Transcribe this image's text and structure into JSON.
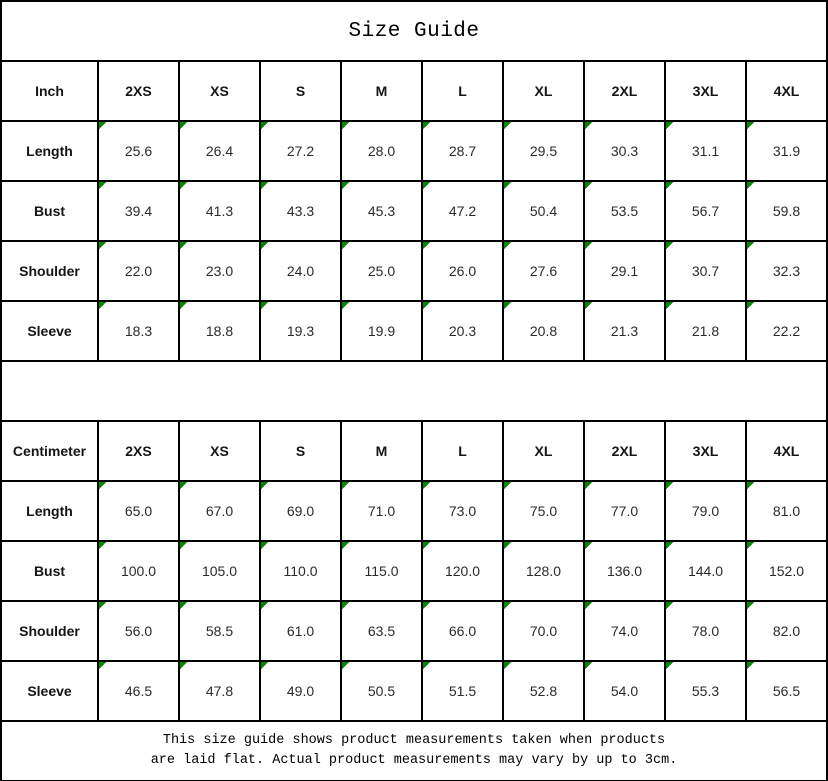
{
  "colors": {
    "background": "#ffffff",
    "border": "#000000",
    "indicator_green": "#008800"
  },
  "icons": {
    "stored_as_text_indicator": "green corner triangle"
  },
  "chart_data": {
    "type": "table",
    "title": "Size Guide",
    "footnote_lines": [
      "This size guide shows product measurements taken when products",
      "are laid flat. Actual product measurements may vary by up to 3cm."
    ],
    "tables": [
      {
        "unit_header": "Inch",
        "size_columns": [
          "2XS",
          "XS",
          "S",
          "M",
          "L",
          "XL",
          "2XL",
          "3XL",
          "4XL"
        ],
        "rows": [
          {
            "label": "Length",
            "values": [
              "25.6",
              "26.4",
              "27.2",
              "28.0",
              "28.7",
              "29.5",
              "30.3",
              "31.1",
              "31.9"
            ]
          },
          {
            "label": "Bust",
            "values": [
              "39.4",
              "41.3",
              "43.3",
              "45.3",
              "47.2",
              "50.4",
              "53.5",
              "56.7",
              "59.8"
            ]
          },
          {
            "label": "Shoulder",
            "values": [
              "22.0",
              "23.0",
              "24.0",
              "25.0",
              "26.0",
              "27.6",
              "29.1",
              "30.7",
              "32.3"
            ]
          },
          {
            "label": "Sleeve",
            "values": [
              "18.3",
              "18.8",
              "19.3",
              "19.9",
              "20.3",
              "20.8",
              "21.3",
              "21.8",
              "22.2"
            ]
          }
        ]
      },
      {
        "unit_header": "Centimeter",
        "size_columns": [
          "2XS",
          "XS",
          "S",
          "M",
          "L",
          "XL",
          "2XL",
          "3XL",
          "4XL"
        ],
        "rows": [
          {
            "label": "Length",
            "values": [
              "65.0",
              "67.0",
              "69.0",
              "71.0",
              "73.0",
              "75.0",
              "77.0",
              "79.0",
              "81.0"
            ]
          },
          {
            "label": "Bust",
            "values": [
              "100.0",
              "105.0",
              "110.0",
              "115.0",
              "120.0",
              "128.0",
              "136.0",
              "144.0",
              "152.0"
            ]
          },
          {
            "label": "Shoulder",
            "values": [
              "56.0",
              "58.5",
              "61.0",
              "63.5",
              "66.0",
              "70.0",
              "74.0",
              "78.0",
              "82.0"
            ]
          },
          {
            "label": "Sleeve",
            "values": [
              "46.5",
              "47.8",
              "49.0",
              "50.5",
              "51.5",
              "52.8",
              "54.0",
              "55.3",
              "56.5"
            ]
          }
        ]
      }
    ]
  }
}
